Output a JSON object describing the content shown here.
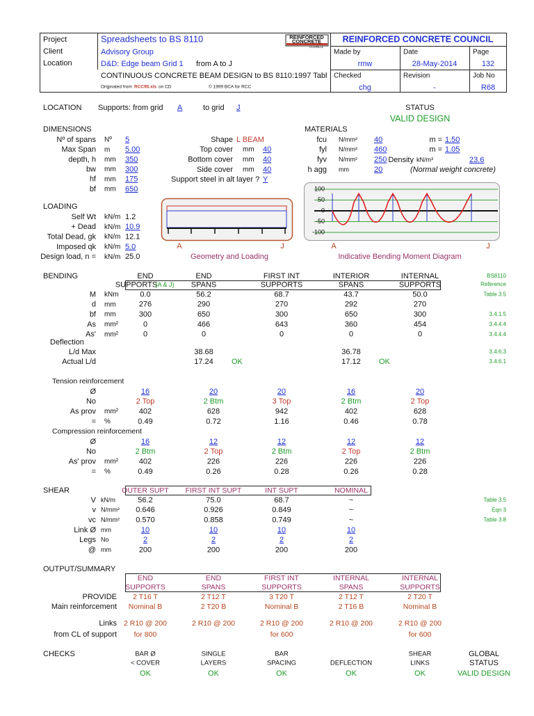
{
  "header": {
    "labels": [
      "Project",
      "Client",
      "Location"
    ],
    "project": "Spreadsheets to BS 8110",
    "client": "Advisory Group",
    "location": "D&D: Edge beam Grid 1",
    "location_note": "from A to J",
    "description": "CONTINUOUS CONCRETE BEAM DESIGN to BS 8110:1997 Tabl",
    "originated_prefix": "Originated from",
    "originated_file": "RCC95.xls",
    "originated_suffix": "on CD",
    "copyright": "© 1999 BCA for RCC",
    "logo": [
      "REINFORCED",
      "CONCRETE",
      "COUNCIL"
    ],
    "council": "REINFORCED CONCRETE COUNCIL",
    "fields": [
      {
        "label": "Made by",
        "value": "rmw"
      },
      {
        "label": "Date",
        "value": "28-May-2014"
      },
      {
        "label": "Page",
        "value": "132"
      },
      {
        "label": "Checked",
        "value": "chg"
      },
      {
        "label": "Revision",
        "value": "-"
      },
      {
        "label": "Job No",
        "value": "R68"
      }
    ]
  },
  "location_row": {
    "title": "LOCATION",
    "from_label": "Supports: from grid",
    "from": "A",
    "to_label": "to grid",
    "to": "J",
    "status_label": "STATUS",
    "status": "VALID DESIGN"
  },
  "dimensions": {
    "title": "DIMENSIONS",
    "rows": [
      {
        "label": "Nº of spans",
        "unit": "Nº",
        "value": "5"
      },
      {
        "label": "Max Span",
        "unit": "m",
        "value": "5.00"
      },
      {
        "label": "depth, h",
        "unit": "mm",
        "value": "350"
      },
      {
        "label": "bw",
        "unit": "mm",
        "value": "300"
      },
      {
        "label": "hf",
        "unit": "mm",
        "value": "175"
      },
      {
        "label": "bf",
        "unit": "mm",
        "value": "650"
      }
    ]
  },
  "shape": {
    "label": "Shape",
    "value": "L BEAM",
    "covers": [
      {
        "label": "Top cover",
        "unit": "mm",
        "value": "40"
      },
      {
        "label": "Bottom cover",
        "unit": "mm",
        "value": "40"
      },
      {
        "label": "Side cover",
        "unit": "mm",
        "value": "40"
      }
    ],
    "alt_layer": {
      "label": "Support steel in alt layer ?",
      "value": "Y"
    }
  },
  "materials": {
    "title": "MATERIALS",
    "rows": [
      {
        "label": "fcu",
        "unit": "N/mm²",
        "value": "40"
      },
      {
        "label": "fyl",
        "unit": "N/mm²",
        "value": "460"
      },
      {
        "label": "fyv",
        "unit": "N/mm²",
        "value": "250"
      },
      {
        "label": "h agg",
        "unit": "mm",
        "value": "20"
      }
    ],
    "gamma": [
      {
        "label": "m =",
        "value": "1.50"
      },
      {
        "label": "m =",
        "value": "1.05"
      }
    ],
    "density": {
      "label": "Density",
      "unit": "kN/m³",
      "value": "23.6"
    },
    "note": "(Normal weight concrete)"
  },
  "loading": {
    "title": "LOADING",
    "rows": [
      {
        "label": "Self Wt",
        "unit": "kN/m",
        "value": "1.2",
        "input": false
      },
      {
        "label": "+ Dead",
        "unit": "kN/m",
        "value": "10.9",
        "input": true
      },
      {
        "label": "Total Dead, gk",
        "unit": "kN/m",
        "value": "12.1",
        "input": false
      },
      {
        "label": "Imposed qk",
        "unit": "kN/m",
        "value": "5.0",
        "input": true
      },
      {
        "label": "Design load, n =",
        "unit": "kN/m",
        "value": "25.0",
        "input": false
      }
    ]
  },
  "geometry": {
    "start": "A",
    "end": "J",
    "caption": "Geometry and Loading"
  },
  "moment_diagram": {
    "ticks": [
      100,
      50,
      0,
      -50,
      -100
    ],
    "start": "A",
    "end": "J",
    "caption": "Indicative Bending Moment Diagram"
  },
  "bending": {
    "title": "BENDING",
    "columns": [
      {
        "line1": "END",
        "line2": "SUPPORTS",
        "note": "(A & J)"
      },
      {
        "line1": "END",
        "line2": "SPANS"
      },
      {
        "line1": "FIRST INT",
        "line2": "SUPPORTS"
      },
      {
        "line1": "INTERIOR",
        "line2": "SPANS"
      },
      {
        "line1": "INTERNAL",
        "line2": "SUPPORTS"
      }
    ],
    "reference_title": [
      "BS8110",
      "Reference"
    ],
    "rows": [
      {
        "label": "M",
        "unit": "kNm",
        "values": [
          "0.0",
          "56.2",
          "68.7",
          "43.7",
          "50.0"
        ],
        "ref": "Table 3.5"
      },
      {
        "label": "d",
        "unit": "mm",
        "values": [
          "276",
          "290",
          "270",
          "292",
          "270"
        ]
      },
      {
        "label": "bf",
        "unit": "mm",
        "values": [
          "300",
          "650",
          "300",
          "650",
          "300"
        ],
        "ref": "3.4.1.5"
      },
      {
        "label": "As",
        "unit": "mm²",
        "values": [
          "0",
          "466",
          "643",
          "360",
          "454"
        ],
        "ref": "3.4.4.4"
      },
      {
        "label": "As'",
        "unit": "mm²",
        "values": [
          "0",
          "0",
          "0",
          "0",
          "0"
        ],
        "ref": "3.4.4.4"
      }
    ],
    "deflection": {
      "title": "Deflection",
      "rows": [
        {
          "label": "L/d Max",
          "values": [
            null,
            "38.68",
            null,
            "36.78",
            null
          ],
          "ref": "3.4.6.3"
        },
        {
          "label": "Actual L/d",
          "values": [
            null,
            "17.24",
            null,
            "17.12",
            null
          ],
          "checks": [
            null,
            "OK",
            null,
            "OK",
            null
          ],
          "ref": "3.4.6.1"
        }
      ]
    }
  },
  "tension": {
    "title": "Tension reinforcement",
    "rows": [
      {
        "label": "Ø",
        "values": [
          "16",
          "20",
          "20",
          "16",
          "20"
        ],
        "input": true
      },
      {
        "label": "No",
        "values": [
          "2 Top",
          "2 Btm",
          "3 Top",
          "2 Btm",
          "2 Top"
        ],
        "colors": [
          "#c0392b",
          "#1f9a2a",
          "#c0392b",
          "#1f9a2a",
          "#c0392b"
        ]
      },
      {
        "label": "As prov",
        "unit": "mm²",
        "values": [
          "402",
          "628",
          "942",
          "402",
          "628"
        ]
      },
      {
        "label": "=",
        "unit": "%",
        "values": [
          "0.49",
          "0.72",
          "1.16",
          "0.46",
          "0.78"
        ]
      }
    ]
  },
  "compression": {
    "title": "Compression reinforcement",
    "rows": [
      {
        "label": "Ø",
        "values": [
          "16",
          "12",
          "12",
          "12",
          "12"
        ],
        "input": true
      },
      {
        "label": "No",
        "values": [
          "2 Btm",
          "2 Top",
          "2 Btm",
          "2 Top",
          "2 Btm"
        ],
        "colors": [
          "#1f9a2a",
          "#c0392b",
          "#1f9a2a",
          "#c0392b",
          "#1f9a2a"
        ]
      },
      {
        "label": "As' prov",
        "unit": "mm²",
        "values": [
          "402",
          "226",
          "226",
          "226",
          "226"
        ]
      },
      {
        "label": "=",
        "unit": "%",
        "values": [
          "0.49",
          "0.26",
          "0.28",
          "0.26",
          "0.28"
        ]
      }
    ]
  },
  "shear": {
    "title": "SHEAR",
    "columns": [
      "OUTER SUPT",
      "FIRST INT SUPT",
      "INT SUPT",
      "NOMINAL"
    ],
    "rows": [
      {
        "label": "V",
        "unit": "kN/m",
        "values": [
          "56.2",
          "75.0",
          "68.7",
          "~"
        ],
        "ref": "Table 3.5"
      },
      {
        "label": "v",
        "unit": "N/mm²",
        "values": [
          "0.646",
          "0.926",
          "0.849",
          "~"
        ],
        "ref": "Eqn 3"
      },
      {
        "label": "vc",
        "unit": "N/mm²",
        "values": [
          "0.570",
          "0.858",
          "0.749",
          "~"
        ],
        "ref": "Table 3.8"
      },
      {
        "label": "Link Ø",
        "unit": "mm",
        "values": [
          "10",
          "10",
          "10",
          "10"
        ],
        "input": true
      },
      {
        "label": "Legs",
        "unit": "No",
        "values": [
          "2",
          "2",
          "2",
          "2"
        ],
        "input": true
      },
      {
        "label": "@",
        "unit": "mm",
        "values": [
          "200",
          "200",
          "200",
          "200"
        ]
      }
    ]
  },
  "output": {
    "title": "OUTPUT/SUMMARY",
    "columns": [
      {
        "line1": "END",
        "line2": "SUPPORTS"
      },
      {
        "line1": "END",
        "line2": "SPANS"
      },
      {
        "line1": "FIRST INT",
        "line2": "SUPPORTS"
      },
      {
        "line1": "INTERNAL",
        "line2": "SPANS"
      },
      {
        "line1": "INTERNAL",
        "line2": "SUPPORTS"
      }
    ],
    "provide": {
      "labels": [
        "PROVIDE",
        "Main reinforcement"
      ],
      "top": [
        "2 T16 T",
        "2 T12 T",
        "3 T20 T",
        "2 T12 T",
        "2 T20 T"
      ],
      "bottom": [
        "Nominal B",
        "2 T20 B",
        "Nominal B",
        "2 T16 B",
        "Nominal B"
      ]
    },
    "links": {
      "labels": [
        "Links",
        "from CL of support"
      ],
      "spacing": [
        "2 R10 @ 200",
        "2 R10 @ 200",
        "2 R10 @ 200",
        "2 R10 @ 200",
        "2 R10 @ 200"
      ],
      "extent": [
        "for 800",
        null,
        "for 600",
        null,
        "for 600"
      ]
    }
  },
  "checks": {
    "title": "CHECKS",
    "items": [
      {
        "line1": "BAR Ø",
        "line2": "< COVER",
        "result": "OK"
      },
      {
        "line1": "SINGLE",
        "line2": "LAYERS",
        "result": "OK"
      },
      {
        "line1": "BAR",
        "line2": "SPACING",
        "result": "OK"
      },
      {
        "line2": "DEFLECTION",
        "result": "OK"
      },
      {
        "line1": "SHEAR",
        "line2": "LINKS",
        "result": "OK"
      },
      {
        "line1": "GLOBAL",
        "line2": "STATUS",
        "result": "VALID DESIGN"
      }
    ]
  }
}
